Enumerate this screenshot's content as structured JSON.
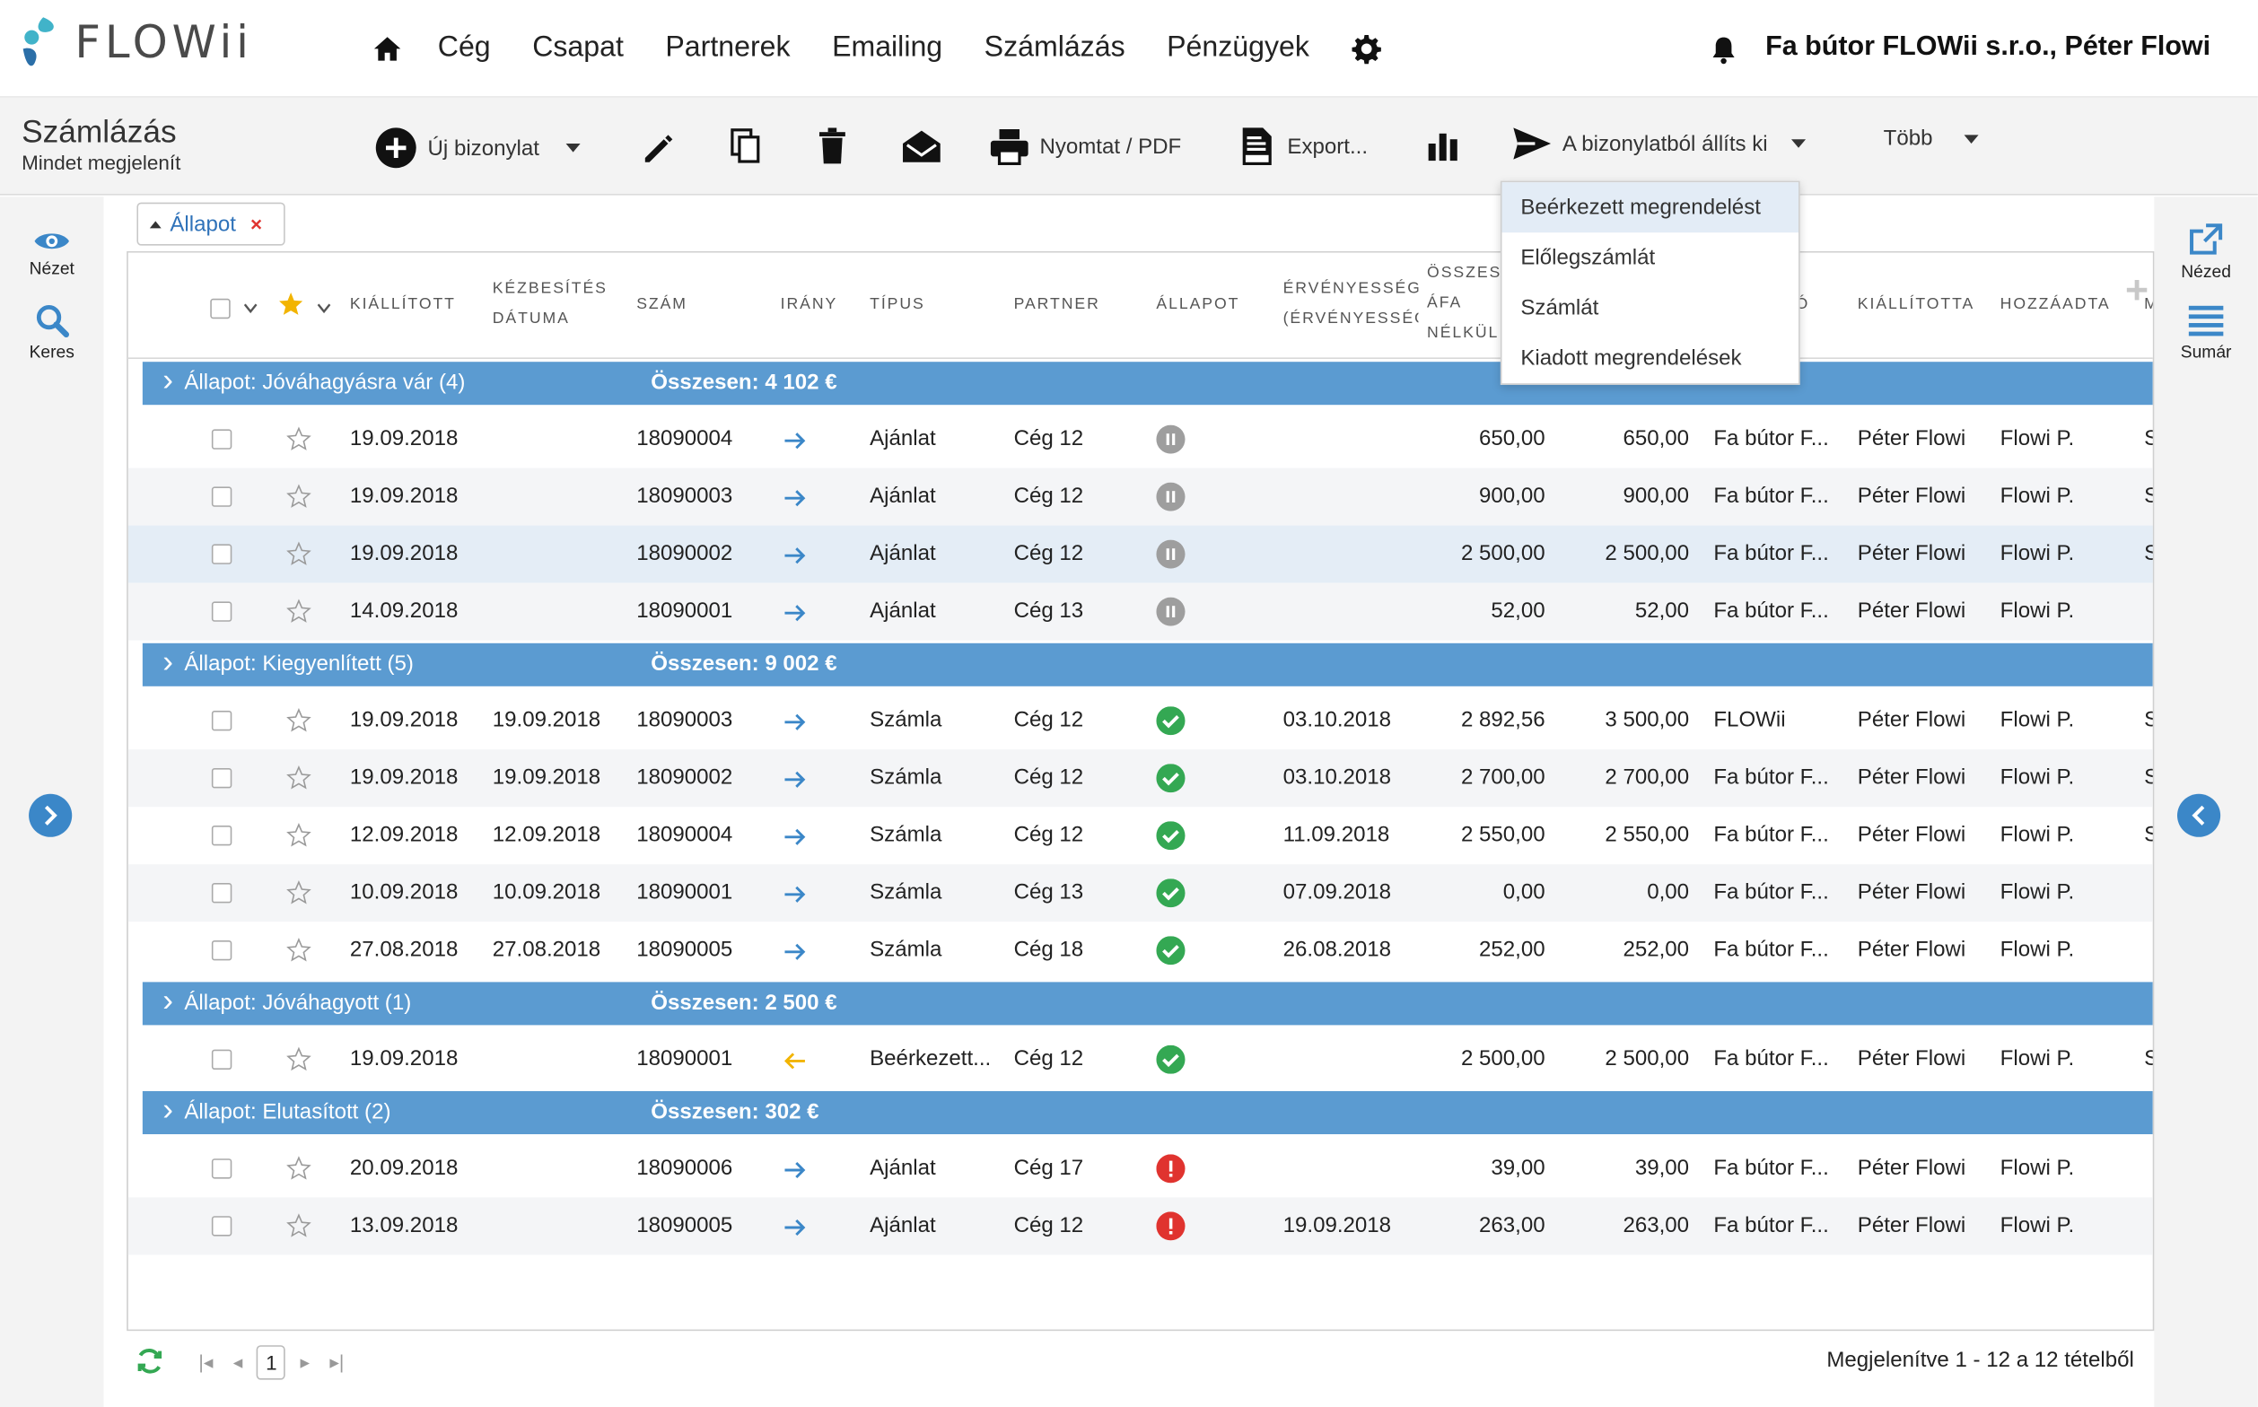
{
  "app": {
    "logo_text": "FLOWii"
  },
  "nav": {
    "items": [
      "Cég",
      "Csapat",
      "Partnerek",
      "Emailing",
      "Számlázás",
      "Pénzügyek"
    ],
    "company": "Fa bútor FLOWii s.r.o., Péter Flowi"
  },
  "toolbar": {
    "title": "Számlázás",
    "subtitle": "Mindet megjelenít",
    "new_doc": "Új bizonylat",
    "print": "Nyomtat / PDF",
    "export": "Export...",
    "issue_from": "A bizonylatból állíts ki",
    "more": "Több"
  },
  "dropdown": {
    "items": [
      "Beérkezett megrendelést",
      "Előlegszámlát",
      "Számlát",
      "Kiadott megrendelések"
    ]
  },
  "rail_left": {
    "view": "Nézet",
    "search": "Keres"
  },
  "rail_right": {
    "view": "Nézed",
    "summary": "Sumár"
  },
  "filter": {
    "label": "Állapot",
    "remove": "×"
  },
  "columns": {
    "issued": "KIÁLLÍTOTT",
    "delivery_1": "KÉZBESÍTÉS",
    "delivery_2": "DÁTUMA",
    "number": "SZÁM",
    "direction": "IRÁNY",
    "type": "TÍPUS",
    "partner": "PARTNER",
    "status": "ÁLLAPOT",
    "validity_1": "ÉRVÉNYESSÉG",
    "validity_2": "(ÉRVÉNYESSÉG",
    "total_1": "ÖSSZESE",
    "total_2": "ÁFA",
    "total_3": "NÉLKÜL",
    "col_to": "TÓ",
    "issued_by": "KIÁLLÍTOTTA",
    "added_by": "HOZZÁADTA",
    "col_m": "M"
  },
  "groups": [
    {
      "label": "Állapot: Jóváhagyásra vár (4)",
      "sum": "Összesen: 4 102 €",
      "rows": [
        {
          "issued": "19.09.2018",
          "delivery": "",
          "number": "18090004",
          "dir": "out",
          "type": "Ajánlat",
          "partner": "Cég 12",
          "status": "pending",
          "validity": "",
          "net": "650,00",
          "gross": "650,00",
          "supplier": "Fa bútor F...",
          "issued_by": "Péter Flowi",
          "added_by": "Flowi P.",
          "extra": "S"
        },
        {
          "issued": "19.09.2018",
          "delivery": "",
          "number": "18090003",
          "dir": "out",
          "type": "Ajánlat",
          "partner": "Cég 12",
          "status": "pending",
          "validity": "",
          "net": "900,00",
          "gross": "900,00",
          "supplier": "Fa bútor F...",
          "issued_by": "Péter Flowi",
          "added_by": "Flowi P.",
          "extra": "S"
        },
        {
          "issued": "19.09.2018",
          "delivery": "",
          "number": "18090002",
          "dir": "out",
          "type": "Ajánlat",
          "partner": "Cég 12",
          "status": "pending",
          "validity": "",
          "net": "2 500,00",
          "gross": "2 500,00",
          "supplier": "Fa bútor F...",
          "issued_by": "Péter Flowi",
          "added_by": "Flowi P.",
          "extra": "S"
        },
        {
          "issued": "14.09.2018",
          "delivery": "",
          "number": "18090001",
          "dir": "out",
          "type": "Ajánlat",
          "partner": "Cég 13",
          "status": "pending",
          "validity": "",
          "net": "52,00",
          "gross": "52,00",
          "supplier": "Fa bútor F...",
          "issued_by": "Péter Flowi",
          "added_by": "Flowi P.",
          "extra": ""
        }
      ]
    },
    {
      "label": "Állapot: Kiegyenlített (5)",
      "sum": "Összesen: 9 002 €",
      "rows": [
        {
          "issued": "19.09.2018",
          "delivery": "19.09.2018",
          "number": "18090003",
          "dir": "out",
          "type": "Számla",
          "partner": "Cég 12",
          "status": "ok",
          "validity": "03.10.2018",
          "net": "2 892,56",
          "gross": "3 500,00",
          "supplier": "FLOWii",
          "issued_by": "Péter Flowi",
          "added_by": "Flowi P.",
          "extra": "S"
        },
        {
          "issued": "19.09.2018",
          "delivery": "19.09.2018",
          "number": "18090002",
          "dir": "out",
          "type": "Számla",
          "partner": "Cég 12",
          "status": "ok",
          "validity": "03.10.2018",
          "net": "2 700,00",
          "gross": "2 700,00",
          "supplier": "Fa bútor F...",
          "issued_by": "Péter Flowi",
          "added_by": "Flowi P.",
          "extra": "S"
        },
        {
          "issued": "12.09.2018",
          "delivery": "12.09.2018",
          "number": "18090004",
          "dir": "out",
          "type": "Számla",
          "partner": "Cég 12",
          "status": "ok",
          "validity": "11.09.2018",
          "net": "2 550,00",
          "gross": "2 550,00",
          "supplier": "Fa bútor F...",
          "issued_by": "Péter Flowi",
          "added_by": "Flowi P.",
          "extra": "S"
        },
        {
          "issued": "10.09.2018",
          "delivery": "10.09.2018",
          "number": "18090001",
          "dir": "out",
          "type": "Számla",
          "partner": "Cég 13",
          "status": "ok",
          "validity": "07.09.2018",
          "net": "0,00",
          "gross": "0,00",
          "supplier": "Fa bútor F...",
          "issued_by": "Péter Flowi",
          "added_by": "Flowi P.",
          "extra": ""
        },
        {
          "issued": "27.08.2018",
          "delivery": "27.08.2018",
          "number": "18090005",
          "dir": "out",
          "type": "Számla",
          "partner": "Cég 18",
          "status": "ok",
          "validity": "26.08.2018",
          "net": "252,00",
          "gross": "252,00",
          "supplier": "Fa bútor F...",
          "issued_by": "Péter Flowi",
          "added_by": "Flowi P.",
          "extra": ""
        }
      ]
    },
    {
      "label": "Állapot: Jóváhagyott (1)",
      "sum": "Összesen: 2 500 €",
      "rows": [
        {
          "issued": "19.09.2018",
          "delivery": "",
          "number": "18090001",
          "dir": "in",
          "type": "Beérkezett...",
          "partner": "Cég 12",
          "status": "ok",
          "validity": "",
          "net": "2 500,00",
          "gross": "2 500,00",
          "supplier": "Fa bútor F...",
          "issued_by": "Péter Flowi",
          "added_by": "Flowi P.",
          "extra": "S"
        }
      ]
    },
    {
      "label": "Állapot: Elutasított (2)",
      "sum": "Összesen: 302 €",
      "rows": [
        {
          "issued": "20.09.2018",
          "delivery": "",
          "number": "18090006",
          "dir": "out",
          "type": "Ajánlat",
          "partner": "Cég 17",
          "status": "rejected",
          "validity": "",
          "net": "39,00",
          "gross": "39,00",
          "supplier": "Fa bútor F...",
          "issued_by": "Péter Flowi",
          "added_by": "Flowi P.",
          "extra": ""
        },
        {
          "issued": "13.09.2018",
          "delivery": "",
          "number": "18090005",
          "dir": "out",
          "type": "Ajánlat",
          "partner": "Cég 12",
          "status": "rejected",
          "validity": "19.09.2018",
          "net": "263,00",
          "gross": "263,00",
          "supplier": "Fa bútor F...",
          "issued_by": "Péter Flowi",
          "added_by": "Flowi P.",
          "extra": ""
        }
      ]
    }
  ],
  "footer": {
    "page": "1",
    "info": "Megjelenítve 1 - 12 a 12 tételből"
  },
  "colors": {
    "accent": "#3b87c8",
    "group_bar": "#5b9bd1",
    "ok": "#34a853",
    "rejected": "#e0332f",
    "pending": "#9e9e9e",
    "arrow_out": "#3b87c8",
    "arrow_in": "#f2b400",
    "star": "#f2b400"
  }
}
